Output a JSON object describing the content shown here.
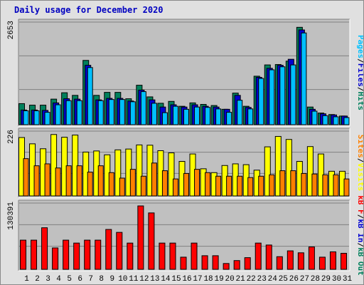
{
  "title": "Daily usage for December 2020",
  "colors": {
    "background": "#e0e0e0",
    "plot_bg": "#c0c0c0",
    "hits": "#00805c",
    "files": "#0000d0",
    "pages": "#00c0ff",
    "visits": "#ffff00",
    "sites": "#ff8000",
    "kbytes": "#ff0000",
    "title": "#0000c0",
    "weekend_label": "#00805c"
  },
  "chart_data": [
    {
      "type": "bar",
      "panel": "requests",
      "categories": [
        "1",
        "2",
        "3",
        "4",
        "5",
        "6",
        "7",
        "8",
        "9",
        "10",
        "11",
        "12",
        "13",
        "14",
        "15",
        "16",
        "17",
        "18",
        "19",
        "20",
        "21",
        "22",
        "23",
        "24",
        "25",
        "26",
        "27",
        "28",
        "29",
        "30",
        "31"
      ],
      "weekend_categories": [
        "5",
        "6",
        "12",
        "13",
        "19",
        "20",
        "26",
        "27"
      ],
      "ymax_label": "2653",
      "ylim": [
        0,
        2653
      ],
      "grid": true,
      "legend": {
        "position": "right",
        "items": [
          "Pages",
          "Files",
          "Hits"
        ],
        "separator": "/"
      },
      "series": [
        {
          "name": "Hits",
          "values": [
            560,
            520,
            520,
            680,
            850,
            780,
            1710,
            780,
            860,
            860,
            690,
            1050,
            740,
            570,
            620,
            490,
            580,
            540,
            510,
            410,
            840,
            490,
            1290,
            1590,
            1600,
            1690,
            2590,
            470,
            310,
            270,
            230
          ]
        },
        {
          "name": "Files",
          "values": [
            390,
            390,
            380,
            580,
            690,
            680,
            1580,
            660,
            700,
            700,
            630,
            920,
            660,
            470,
            530,
            470,
            530,
            490,
            470,
            410,
            780,
            460,
            1260,
            1500,
            1580,
            1740,
            2520,
            410,
            290,
            260,
            230
          ]
        },
        {
          "name": "Pages",
          "values": [
            370,
            370,
            330,
            530,
            640,
            640,
            1520,
            640,
            670,
            670,
            610,
            880,
            570,
            320,
            490,
            410,
            470,
            460,
            420,
            330,
            650,
            420,
            1230,
            1460,
            1540,
            1590,
            2440,
            360,
            240,
            210,
            190
          ]
        }
      ]
    },
    {
      "type": "bar",
      "panel": "visitors",
      "categories": [
        "1",
        "2",
        "3",
        "4",
        "5",
        "6",
        "7",
        "8",
        "9",
        "10",
        "11",
        "12",
        "13",
        "14",
        "15",
        "16",
        "17",
        "18",
        "19",
        "20",
        "21",
        "22",
        "23",
        "24",
        "25",
        "26",
        "27",
        "28",
        "29",
        "30",
        "31"
      ],
      "ymax_label": "226",
      "ylim": [
        0,
        226
      ],
      "grid": true,
      "legend": {
        "position": "right",
        "items": [
          "Sites",
          "Visits"
        ],
        "separator": "/"
      },
      "series": [
        {
          "name": "Visits",
          "values": [
            213,
            190,
            172,
            224,
            214,
            222,
            160,
            164,
            150,
            168,
            171,
            186,
            185,
            165,
            157,
            126,
            153,
            99,
            85,
            111,
            117,
            114,
            94,
            179,
            217,
            206,
            126,
            180,
            153,
            90,
            90
          ]
        },
        {
          "name": "Sites",
          "values": [
            136,
            110,
            117,
            102,
            110,
            110,
            87,
            110,
            85,
            65,
            97,
            72,
            120,
            92,
            62,
            82,
            97,
            85,
            72,
            72,
            72,
            67,
            72,
            77,
            92,
            92,
            82,
            80,
            77,
            77,
            62
          ]
        }
      ]
    },
    {
      "type": "bar",
      "panel": "kbytes",
      "categories": [
        "1",
        "2",
        "3",
        "4",
        "5",
        "6",
        "7",
        "8",
        "9",
        "10",
        "11",
        "12",
        "13",
        "14",
        "15",
        "16",
        "17",
        "18",
        "19",
        "20",
        "21",
        "22",
        "23",
        "24",
        "25",
        "26",
        "27",
        "28",
        "29",
        "30",
        "31"
      ],
      "ymax_label": "130391",
      "ylim": [
        0,
        130391
      ],
      "grid": true,
      "legend": {
        "position": "right",
        "items": [
          "kB F",
          "kB In",
          "kB Out"
        ],
        "separator": "/"
      },
      "series": [
        {
          "name": "kB F",
          "values": [
            60000,
            60000,
            85500,
            44000,
            60000,
            54000,
            60000,
            60000,
            82000,
            76000,
            54000,
            130391,
            116000,
            54000,
            54000,
            25000,
            54000,
            28000,
            28000,
            12000,
            18000,
            24000,
            54000,
            50000,
            26000,
            38000,
            34000,
            46000,
            25000,
            36000,
            33000
          ]
        }
      ]
    }
  ]
}
